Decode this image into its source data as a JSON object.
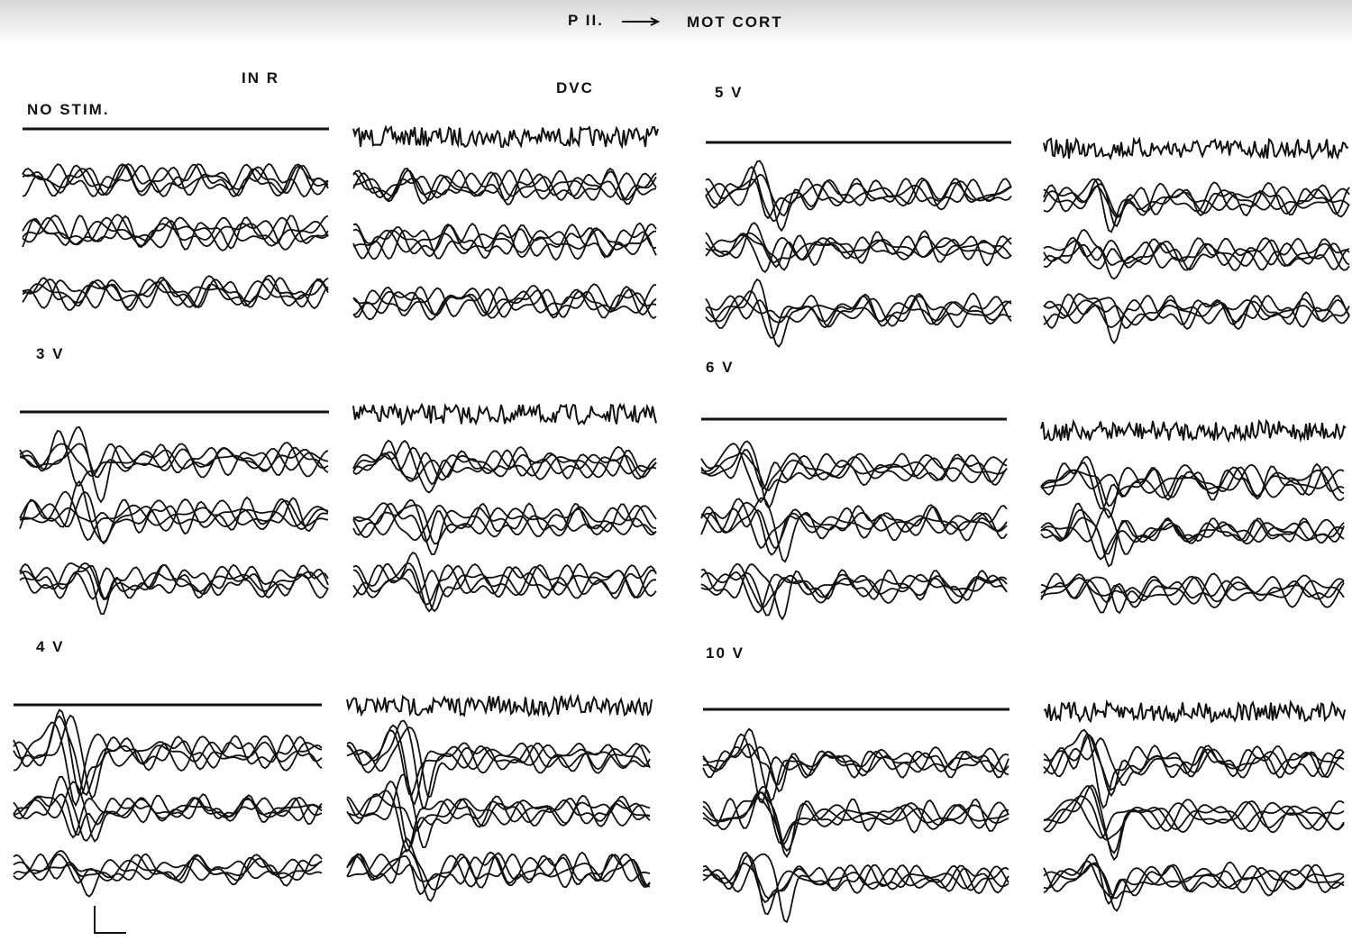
{
  "header": {
    "left": "P II.",
    "right": "MOT CORT"
  },
  "columns": {
    "first": "IN R",
    "second": "DVC"
  },
  "panels": [
    "NO STIM.",
    "3 V",
    "4 V",
    "5 V",
    "6 V",
    "10 V"
  ]
}
